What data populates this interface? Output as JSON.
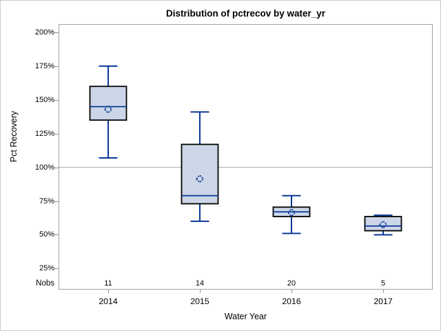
{
  "chart_data": {
    "type": "box",
    "title": "Distribution of pctrecov by water_yr",
    "xlabel": "Water Year",
    "ylabel": "Pct Recovery",
    "nobs_label": "Nobs",
    "categories": [
      "2014",
      "2015",
      "2016",
      "2017"
    ],
    "nobs": [
      "11",
      "14",
      "20",
      "5"
    ],
    "y_ticks": [
      200,
      175,
      150,
      125,
      100,
      75,
      50,
      25
    ],
    "y_tick_suffix": "%",
    "ylim": [
      25,
      200
    ],
    "reference_line": 100,
    "grid": false,
    "legend_position": "none",
    "boxes": [
      {
        "category": "2014",
        "n": 11,
        "min": 107,
        "q1": 135,
        "median": 145,
        "mean": 143,
        "q3": 160,
        "max": 175
      },
      {
        "category": "2015",
        "n": 14,
        "min": 60,
        "q1": 73,
        "median": 79,
        "mean": 91.5,
        "q3": 117,
        "max": 141
      },
      {
        "category": "2016",
        "n": 20,
        "min": 51,
        "q1": 63.5,
        "median": 67,
        "mean": 66.5,
        "q3": 70.5,
        "max": 79
      },
      {
        "category": "2017",
        "n": 5,
        "min": 50,
        "q1": 53,
        "median": 56.5,
        "mean": 57.5,
        "q3": 63.5,
        "max": 64.5
      }
    ]
  },
  "colors": {
    "box_fill": "#ccd6e8",
    "box_border": "#000000",
    "line_blue": "#0a3896",
    "reference_line": "#a9a9a9",
    "plot_border": "#9fa3a6",
    "figure_border": "#c9ccce",
    "tick_color": "#8c8f92",
    "text_color": "#000000",
    "background": "#ffffff"
  }
}
